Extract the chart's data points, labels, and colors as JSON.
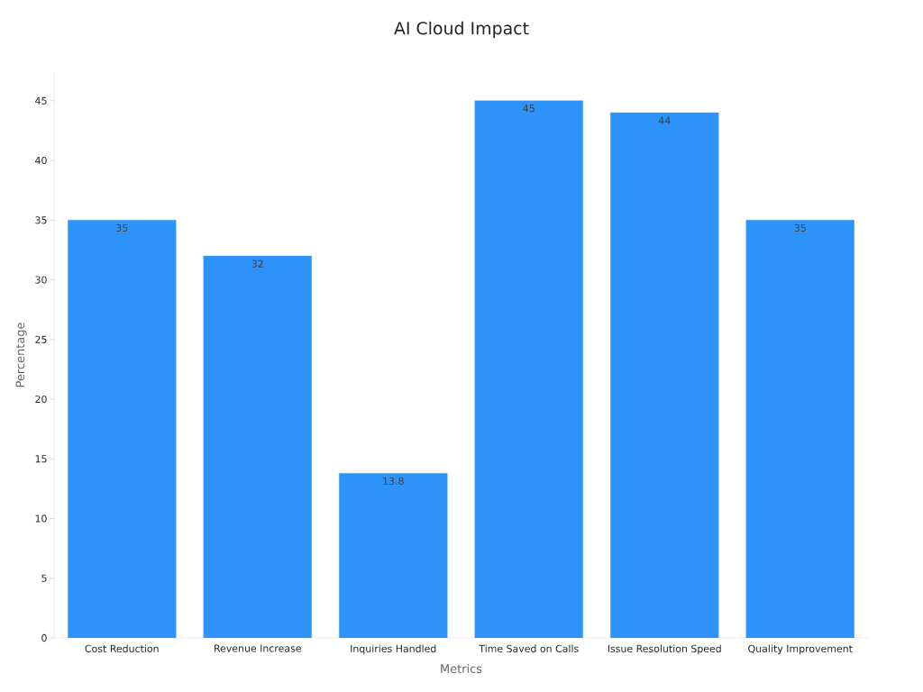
{
  "chart_data": {
    "type": "bar",
    "title": "AI Cloud Impact",
    "xlabel": "Metrics",
    "ylabel": "Percentage",
    "categories": [
      "Cost Reduction",
      "Revenue Increase",
      "Inquiries Handled",
      "Time Saved on Calls",
      "Issue Resolution Speed",
      "Quality Improvement"
    ],
    "values": [
      35,
      32,
      13.8,
      45,
      44,
      35
    ],
    "color": "#2e93f8",
    "ylim": [
      0,
      47.4
    ],
    "yticks": [
      0,
      5,
      10,
      15,
      20,
      25,
      30,
      35,
      40,
      45
    ],
    "data_labels": true
  }
}
